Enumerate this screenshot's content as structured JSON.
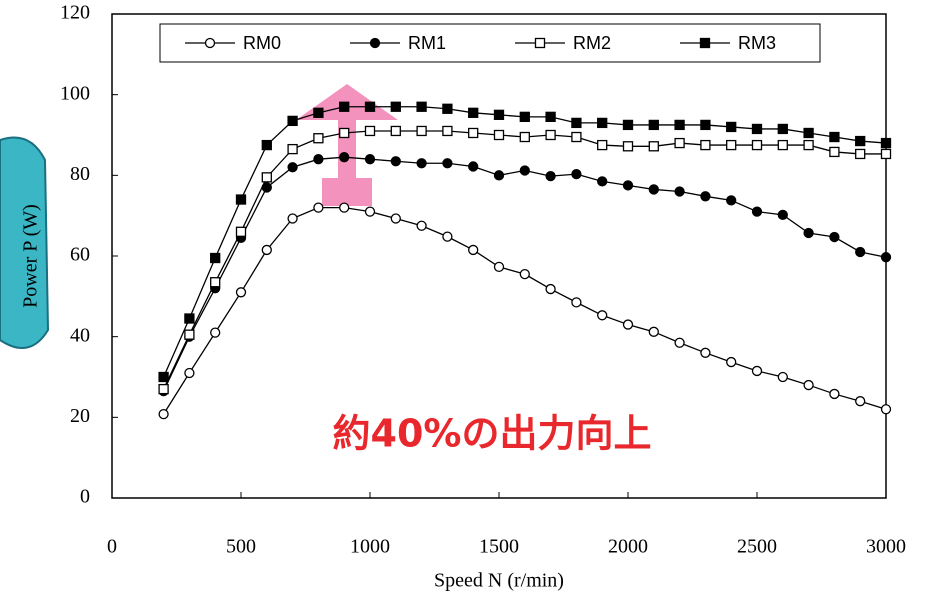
{
  "chart_data": {
    "type": "line",
    "xlabel": "Speed N (r/min)",
    "ylabel": "Power P (W)",
    "annotation": "約40%の出力向上",
    "x": [
      200,
      300,
      400,
      500,
      600,
      700,
      800,
      900,
      1000,
      1100,
      1200,
      1300,
      1400,
      1500,
      1600,
      1700,
      1800,
      1900,
      2000,
      2100,
      2200,
      2300,
      2400,
      2500,
      2600,
      2700,
      2800,
      2900,
      3000
    ],
    "series": [
      {
        "name": "RM0",
        "color": "#000000",
        "marker": "circle",
        "marker_fill": "#ffffff",
        "values": [
          20.8,
          31,
          41,
          51,
          61.5,
          69.3,
          72,
          72,
          71,
          69.3,
          67.5,
          64.8,
          61.5,
          57.3,
          55.5,
          51.8,
          48.5,
          45.3,
          43,
          41.2,
          38.5,
          36,
          33.7,
          31.5,
          30,
          28,
          25.8,
          24,
          22
        ]
      },
      {
        "name": "RM1",
        "color": "#000000",
        "marker": "circle",
        "marker_fill": "#000000",
        "values": [
          26.5,
          40,
          52,
          64.5,
          77,
          82,
          84,
          84.5,
          84,
          83.5,
          83,
          83,
          82.2,
          80,
          81.2,
          79.8,
          80.3,
          78.5,
          77.5,
          76.5,
          76,
          74.8,
          73.8,
          71,
          70.2,
          65.7,
          64.7,
          61,
          59.7
        ]
      },
      {
        "name": "RM2",
        "color": "#000000",
        "marker": "square",
        "marker_fill": "#ffffff",
        "values": [
          27,
          40.5,
          53.5,
          66,
          79.5,
          86.5,
          89.2,
          90.5,
          91,
          91,
          91,
          91,
          90.5,
          90,
          89.5,
          90,
          89.5,
          87.5,
          87.2,
          87.2,
          88,
          87.5,
          87.5,
          87.5,
          87.5,
          87.5,
          85.8,
          85.3,
          85.3
        ]
      },
      {
        "name": "RM3",
        "color": "#000000",
        "marker": "square",
        "marker_fill": "#000000",
        "values": [
          30,
          44.5,
          59.5,
          74,
          87.5,
          93.5,
          95.5,
          97,
          97,
          97,
          97,
          96.5,
          95.5,
          95,
          94.5,
          94.5,
          93,
          93,
          92.5,
          92.5,
          92.5,
          92.5,
          92,
          91.5,
          91.5,
          90.5,
          89.5,
          88.5,
          88
        ]
      }
    ],
    "xlim": [
      0,
      3000
    ],
    "xticks": [
      0,
      500,
      1000,
      1500,
      2000,
      2500,
      3000
    ],
    "ylim": [
      0,
      120
    ],
    "yticks": [
      0,
      20,
      40,
      60,
      80,
      100,
      120
    ],
    "legend": "top"
  }
}
